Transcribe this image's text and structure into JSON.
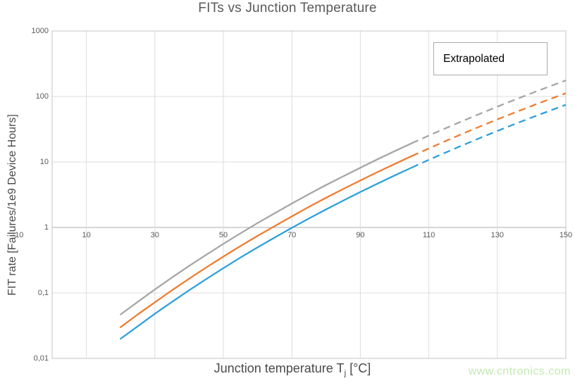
{
  "watermark": "www.cntronics.com",
  "chart_data": {
    "type": "line",
    "title": "FITs vs Junction Temperature",
    "ylabel": "FIT rate [Failures/1e9 Device Hours]",
    "xlabel": "Junction temperature Tj [°C]",
    "xlabel_parts": {
      "prefix": "Junction temperature T",
      "sub": "j",
      "suffix": " [°C]"
    },
    "annotation_label": "Extrapolated",
    "legend": false,
    "grid": true,
    "x_axis": {
      "min": -10,
      "max": 150,
      "ticks": [
        -10,
        10,
        30,
        50,
        70,
        90,
        110,
        130,
        150
      ],
      "tick_labels": [
        "-10",
        "10",
        "30",
        "50",
        "70",
        "90",
        "110",
        "130",
        "150"
      ]
    },
    "y_axis": {
      "scale": "log",
      "min": 0.01,
      "max": 1000,
      "ticks": [
        1000,
        100,
        10,
        1,
        0.1,
        0.01
      ],
      "tick_labels": [
        "1000",
        "100",
        "10",
        "1",
        "0,1",
        "0,01"
      ]
    },
    "x_solid": [
      20,
      25,
      30,
      35,
      40,
      45,
      50,
      55,
      60,
      65,
      70,
      75,
      80,
      85,
      90,
      95,
      100,
      105
    ],
    "x_extrapolated": [
      105,
      110,
      115,
      120,
      125,
      130,
      135,
      140,
      145,
      150
    ],
    "series": [
      {
        "name": "gray",
        "color": "#a6a6a6",
        "solid": [
          0.047,
          0.073,
          0.113,
          0.172,
          0.259,
          0.383,
          0.562,
          0.815,
          1.17,
          1.65,
          2.32,
          3.23,
          4.45,
          6.04,
          8.17,
          11.0,
          14.6,
          19.3
        ],
        "extrapolated": [
          19.3,
          25.3,
          32.9,
          42.6,
          54.7,
          69.9,
          88.9,
          112,
          141,
          176
        ]
      },
      {
        "name": "orange",
        "color": "#ed7d31",
        "solid": [
          0.03,
          0.047,
          0.072,
          0.11,
          0.165,
          0.245,
          0.359,
          0.52,
          0.744,
          1.05,
          1.48,
          2.06,
          2.84,
          3.86,
          5.22,
          7.0,
          9.31,
          12.3
        ],
        "extrapolated": [
          12.3,
          16.1,
          21.0,
          27.2,
          34.9,
          44.6,
          56.7,
          71.5,
          89.8,
          112
        ]
      },
      {
        "name": "blue",
        "color": "#2fa0dc",
        "solid": [
          0.02,
          0.031,
          0.048,
          0.073,
          0.11,
          0.163,
          0.239,
          0.347,
          0.496,
          0.703,
          0.987,
          1.37,
          1.89,
          2.57,
          3.48,
          4.67,
          6.21,
          8.21
        ],
        "extrapolated": [
          8.21,
          10.8,
          14.0,
          18.1,
          23.3,
          29.7,
          37.8,
          47.7,
          59.8,
          74.7
        ]
      }
    ]
  }
}
